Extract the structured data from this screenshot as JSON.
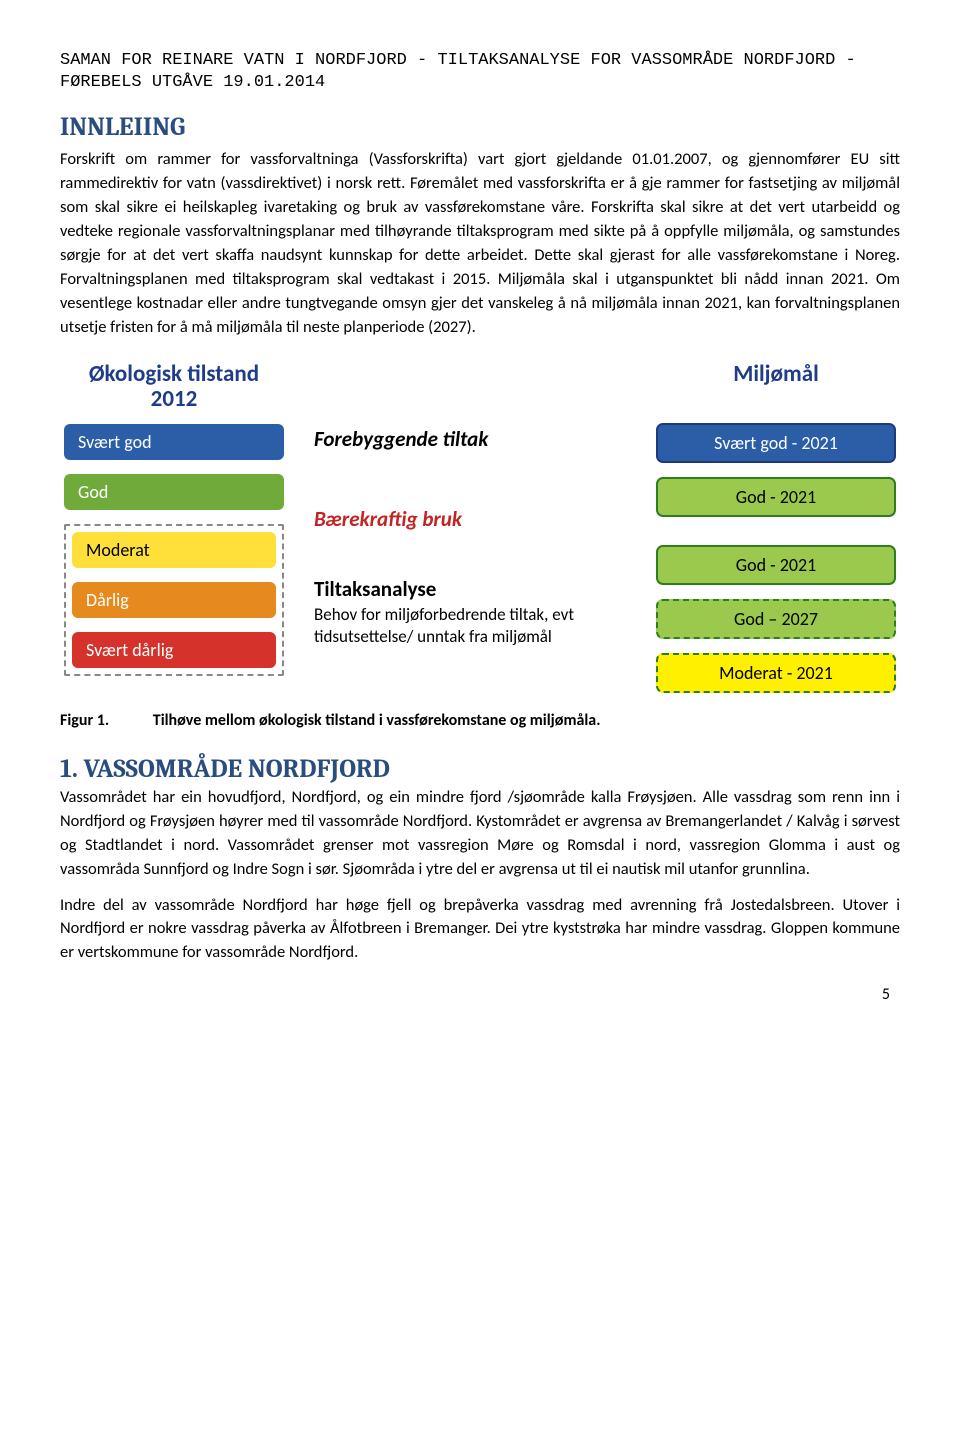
{
  "header": "SAMAN FOR REINARE VATN I NORDFJORD - TILTAKSANALYSE FOR VASSOMRÅDE NORDFJORD - FØREBELS UTGÅVE 19.01.2014",
  "section_innleiing_title": "INNLEIING",
  "para1": "Forskrift om rammer for vassforvaltninga (Vassforskrifta) vart gjort gjeldande 01.01.2007, og gjennomfører EU sitt rammedirektiv for vatn (vassdirektivet) i norsk rett. Føremålet med vassforskrifta er å gje rammer for fastsetjing av miljømål som skal sikre ei heilskapleg ivaretaking og bruk av vassførekomstane våre. Forskrifta skal sikre at det vert utarbeidd og vedteke regionale vassforvaltningsplanar med tilhøyrande tiltaksprogram med sikte på å oppfylle miljømåla, og samstundes sørgje for at det vert skaffa naudsynt kunnskap for dette arbeidet. Dette skal gjerast for alle vassførekomstane i Noreg. Forvaltningsplanen med tiltaksprogram skal vedtakast i 2015.  Miljømåla skal i utganspunktet bli nådd innan 2021. Om vesentlege kostnadar eller andre tungtvegande omsyn gjer det vanskeleg å nå miljømåla innan 2021, kan forvaltningsplanen utsetje fristen for å må miljømåla til neste planperiode (2027).",
  "figure": {
    "left_title": "Økologisk tilstand\n2012",
    "right_title": "Miljømål",
    "left_title_color": "#1f3c8a",
    "right_title_color": "#1f3c8a",
    "left_boxes": [
      {
        "label": "Svært god",
        "bg": "#2b5ea6",
        "text_color": "#ffffff"
      },
      {
        "label": "God",
        "bg": "#6faa3a",
        "text_color": "#ffffff"
      },
      {
        "label": "Moderat",
        "bg": "#ffe03a",
        "text_color": "#000000"
      },
      {
        "label": "Dårlig",
        "bg": "#e68a1f",
        "text_color": "#ffffff"
      },
      {
        "label": "Svært dårlig",
        "bg": "#d4322b",
        "text_color": "#ffffff"
      }
    ],
    "mid": {
      "row1": "Forebyggende tiltak",
      "row2": "Bærekraftig bruk",
      "row3_title": "Tiltaksanalyse",
      "row3_body": "Behov for miljøforbedrende tiltak, evt tidsutsettelse/ unntak fra miljømål"
    },
    "right_boxes": [
      {
        "label": "Svært god - 2021",
        "bg": "#2b5ea6",
        "border": "solid",
        "text_color": "#ffffff"
      },
      {
        "label": "God - 2021",
        "bg": "#9ac94d",
        "border": "solid",
        "text_color": "#000000"
      },
      {
        "label": "God - 2021",
        "bg": "#9ac94d",
        "border": "solid",
        "text_color": "#000000"
      },
      {
        "label": "God – 2027",
        "bg": "#9ac94d",
        "border": "dashed",
        "text_color": "#000000"
      },
      {
        "label": "Moderat - 2021",
        "bg": "#fff000",
        "border": "dashed",
        "text_color": "#000000"
      }
    ]
  },
  "figure_caption_label": "Figur 1.",
  "figure_caption_text": "Tilhøve mellom økologisk tilstand i vassførekomstane og miljømåla.",
  "section2_title": "1.  VASSOMRÅDE NORDFJORD",
  "para2": "Vassområdet har ein hovudfjord, Nordfjord, og ein mindre fjord /sjøområde kalla Frøysjøen. Alle vassdrag som renn inn i Nordfjord og Frøysjøen høyrer med til vassområde Nordfjord. Kystområdet er avgrensa av Bremangerlandet / Kalvåg i sørvest og Stadtlandet i nord. Vassområdet grenser mot vassregion Møre og Romsdal i nord, vassregion Glomma i aust og vassområda Sunnfjord og Indre Sogn i sør. Sjøområda i ytre del er avgrensa ut til ei nautisk mil utanfor grunnlina.",
  "para3": "Indre del av vassområde Nordfjord har høge fjell og brepåverka vassdrag med avrenning frå Jostedalsbreen. Utover i Nordfjord er nokre vassdrag påverka av Ålfotbreen i Bremanger. Dei ytre kyststrøka har mindre vassdrag. Gloppen kommune er vertskommune for vassområde Nordfjord.",
  "page_number": "5"
}
